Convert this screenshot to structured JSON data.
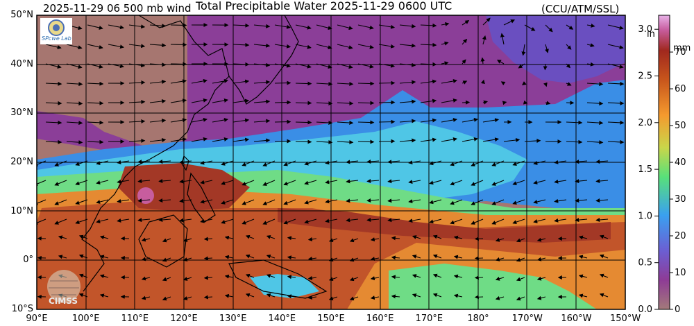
{
  "header": {
    "left": "2025-11-29 06 500 mb wind",
    "title": "Total Precipitable Water  2025-11-29 0600 UTC",
    "credit": "(CCU/ATM/SSL)"
  },
  "map": {
    "lat_labels": [
      "50°N",
      "40°N",
      "30°N",
      "20°N",
      "10°N",
      "0°",
      "10°S"
    ],
    "lon_labels": [
      "90°E",
      "100°E",
      "110°E",
      "120°E",
      "130°E",
      "140°E",
      "150°E",
      "160°E",
      "170°E",
      "180°",
      "170°W",
      "160°W",
      "150°W"
    ],
    "lat_range": [
      -10,
      50
    ],
    "lon_range": [
      90,
      210
    ],
    "watermark": "CIMSS",
    "logo_text": "SPcwe Lab"
  },
  "colorbar": {
    "unit_in": "in",
    "unit_mm": "mm",
    "in_ticks": [
      "3.0",
      "2.5",
      "2.0",
      "1.5",
      "1.0",
      "0.5",
      "0.0"
    ],
    "mm_ticks": [
      "70",
      "60",
      "50",
      "40",
      "30",
      "20",
      "10",
      "0"
    ],
    "in_values": [
      3.0,
      2.5,
      2.0,
      1.5,
      1.0,
      0.5,
      0.0
    ],
    "mm_values": [
      70,
      60,
      50,
      40,
      30,
      20,
      10,
      0
    ],
    "range_in": [
      0,
      3.15
    ],
    "colors": [
      "#a37a7a",
      "#8e3b96",
      "#6b5fd3",
      "#3aa0f0",
      "#58e07a",
      "#c9d64a",
      "#f49a2e",
      "#c8561c",
      "#a0281e",
      "#c75d9e",
      "#e8b2e8"
    ]
  },
  "fields": {
    "tpw_colors": {
      "dry": "#a67670",
      "purple": "#8b3e98",
      "violet": "#6a4fc0",
      "blue": "#3a8ee6",
      "cyan": "#4fc6e6",
      "green": "#6fdc86",
      "orange": "#e58a32",
      "rust": "#c2552a",
      "deep": "#a33826"
    }
  }
}
